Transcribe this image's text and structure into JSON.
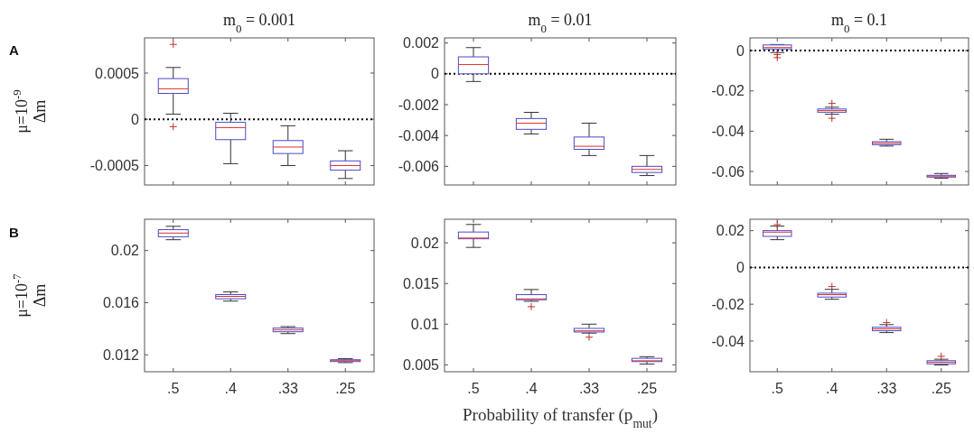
{
  "chart_data": [
    {
      "type": "box",
      "title": "m$_{0}$ = 0.001",
      "ylabel": "μ=10$^{-9}$ Δm",
      "annotations": [
        "A"
      ],
      "categories": [
        null,
        null,
        null,
        null
      ],
      "tick_labels": "y",
      "color": "#4a4ac8",
      "marker": "cross",
      "ylim": [
        -0.00071,
        0.00088
      ],
      "yticks": [
        -0.0005,
        0,
        0.0005
      ],
      "ref_lines": [
        {
          "axis": "y",
          "value": 0,
          "line_style": "dotted",
          "color": "#000000"
        }
      ],
      "boxes": [
        {
          "low": 5.5e-05,
          "q1": 0.00028,
          "median": 0.00033,
          "q3": 0.00044,
          "high": 0.00056,
          "outliers": [
            0.00081,
            -8e-05
          ]
        },
        {
          "low": -0.00048,
          "q1": -0.00022,
          "median": -9e-05,
          "q3": -3.3e-05,
          "high": 6.5e-05
        },
        {
          "low": -0.0005,
          "q1": -0.00037,
          "median": -0.0003,
          "q3": -0.00023,
          "high": -7e-05
        },
        {
          "low": -0.00064,
          "q1": -0.00055,
          "median": -0.0005,
          "q3": -0.00045,
          "high": -0.00034
        }
      ]
    },
    {
      "type": "box",
      "title": "m$_{0}$ = 0.01",
      "categories": [
        null,
        null,
        null,
        null
      ],
      "tick_labels": "y",
      "color": "#4a4ac8",
      "ylim": [
        -0.00721,
        0.00233
      ],
      "yticks": [
        -0.006,
        -0.004,
        -0.002,
        0,
        0.002
      ],
      "ref_lines": [
        {
          "axis": "y",
          "value": 0,
          "line_style": "dotted",
          "color": "#000000"
        }
      ],
      "boxes": [
        {
          "low": -0.0005,
          "q1": 0,
          "median": 0.0006,
          "q3": 0.0011,
          "high": 0.0017
        },
        {
          "low": -0.0039,
          "q1": -0.0036,
          "median": -0.0032,
          "q3": -0.0029,
          "high": -0.0025
        },
        {
          "low": -0.0053,
          "q1": -0.0049,
          "median": -0.0047,
          "q3": -0.0041,
          "high": -0.0032
        },
        {
          "low": -0.0066,
          "q1": -0.0064,
          "median": -0.0062,
          "q3": -0.006,
          "high": -0.0053
        }
      ]
    },
    {
      "type": "box",
      "title": "m$_{0}$ = 0.1",
      "categories": [
        null,
        null,
        null,
        null
      ],
      "tick_labels": "y",
      "color": "#4a4ac8",
      "marker": "cross",
      "ylim": [
        -0.0667,
        0.0063
      ],
      "yticks": [
        -0.06,
        -0.04,
        -0.02,
        0
      ],
      "ref_lines": [
        {
          "axis": "y",
          "value": 0,
          "line_style": "dotted",
          "color": "#000000"
        }
      ],
      "boxes": [
        {
          "low": -0.001,
          "q1": 0.0008,
          "median": 0.0015,
          "q3": 0.0028,
          "high": 0.003,
          "outliers": [
            -0.002,
            -0.0035
          ]
        },
        {
          "low": -0.0316,
          "q1": -0.0306,
          "median": -0.0298,
          "q3": -0.029,
          "high": -0.0281,
          "outliers": [
            -0.0262,
            -0.0336
          ]
        },
        {
          "low": -0.0474,
          "q1": -0.0467,
          "median": -0.046,
          "q3": -0.0452,
          "high": -0.044
        },
        {
          "low": -0.0634,
          "q1": -0.0628,
          "median": -0.0623,
          "q3": -0.0619,
          "high": -0.061
        }
      ]
    },
    {
      "type": "box",
      "ylabel": "μ=10$^{-7}$ Δm",
      "annotations": [
        "B"
      ],
      "categories": [
        ".5",
        ".4",
        ".33",
        ".25"
      ],
      "color": "#4a4ac8",
      "ylim": [
        0.0107,
        0.0224
      ],
      "yticks": [
        0.012,
        0.016,
        0.02
      ],
      "boxes": [
        {
          "low": 0.02083,
          "q1": 0.02106,
          "median": 0.02134,
          "q3": 0.0216,
          "high": 0.02186
        },
        {
          "low": 0.01612,
          "q1": 0.0163,
          "median": 0.01648,
          "q3": 0.01662,
          "high": 0.01683
        },
        {
          "low": 0.01363,
          "q1": 0.01377,
          "median": 0.01391,
          "q3": 0.01405,
          "high": 0.01416
        },
        {
          "low": 0.0114,
          "q1": 0.01148,
          "median": 0.01155,
          "q3": 0.01162,
          "high": 0.0117
        }
      ]
    },
    {
      "type": "box",
      "xlabel": "Probability of transfer (p$_{mut}$)",
      "categories": [
        ".5",
        ".4",
        ".33",
        ".25"
      ],
      "color": "#4a4ac8",
      "marker": "cross",
      "ylim": [
        0.00415,
        0.0229
      ],
      "yticks": [
        0.005,
        0.01,
        0.015,
        0.02
      ],
      "boxes": [
        {
          "low": 0.01944,
          "q1": 0.0205,
          "median": 0.02059,
          "q3": 0.02133,
          "high": 0.02226
        },
        {
          "low": 0.01281,
          "q1": 0.013,
          "median": 0.01311,
          "q3": 0.01363,
          "high": 0.01426,
          "outliers": [
            0.01215
          ]
        },
        {
          "low": 0.0089,
          "q1": 0.00903,
          "median": 0.00918,
          "q3": 0.00948,
          "high": 0.01,
          "outliers": [
            0.0084
          ]
        },
        {
          "low": 0.0051,
          "q1": 0.0054,
          "median": 0.0055,
          "q3": 0.0058,
          "high": 0.006
        }
      ]
    },
    {
      "type": "box",
      "categories": [
        ".5",
        ".4",
        ".33",
        ".25"
      ],
      "color": "#4a4ac8",
      "marker": "cross",
      "ylim": [
        -0.0567,
        0.0262
      ],
      "yticks": [
        -0.04,
        -0.02,
        0,
        0.02
      ],
      "ref_lines": [
        {
          "axis": "y",
          "value": 0,
          "line_style": "dotted",
          "color": "#000000"
        }
      ],
      "boxes": [
        {
          "low": 0.0151,
          "q1": 0.0169,
          "median": 0.0192,
          "q3": 0.02,
          "high": 0.0225,
          "outliers": [
            0.0233
          ]
        },
        {
          "low": -0.0173,
          "q1": -0.0161,
          "median": -0.0148,
          "q3": -0.014,
          "high": -0.0119,
          "outliers": [
            -0.0104
          ]
        },
        {
          "low": -0.0354,
          "q1": -0.0344,
          "median": -0.0334,
          "q3": -0.0325,
          "high": -0.0311,
          "outliers": [
            -0.03
          ]
        },
        {
          "low": -0.053,
          "q1": -0.0524,
          "median": -0.0515,
          "q3": -0.0507,
          "high": -0.0499,
          "outliers": [
            -0.0483
          ]
        }
      ]
    }
  ]
}
